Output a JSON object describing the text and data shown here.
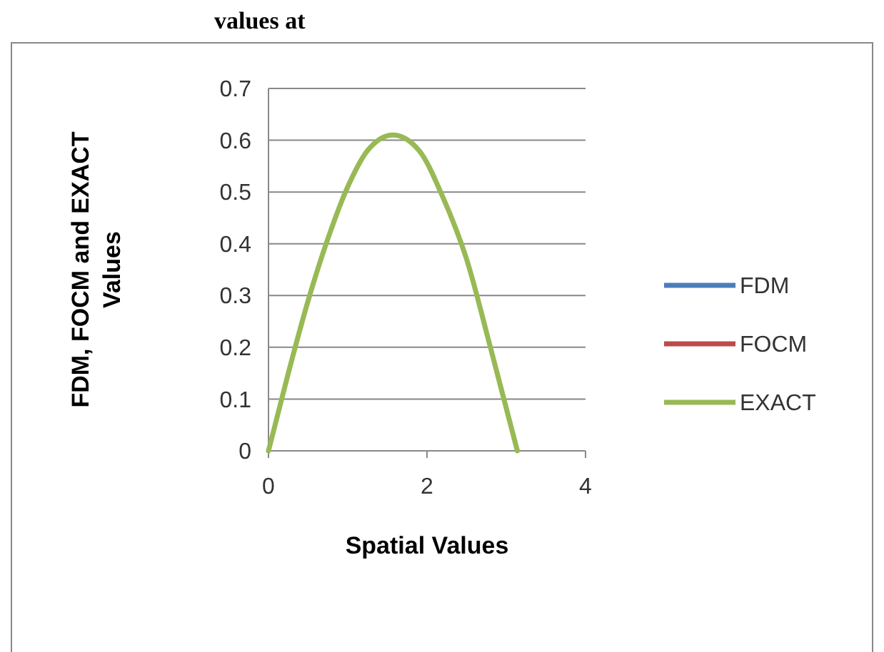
{
  "chart_data": {
    "type": "line",
    "title": "values at",
    "xlabel": "Spatial Values",
    "ylabel": "FDM, FOCM and EXACT Values",
    "x": [
      0,
      0.25,
      0.5,
      0.75,
      1,
      1.25,
      1.57,
      1.9,
      2.2,
      2.5,
      2.8,
      3.14
    ],
    "series": [
      {
        "name": "FDM",
        "color": "#4a7ebb",
        "values": [
          null,
          null,
          null,
          null,
          null,
          null,
          null,
          null,
          null,
          null,
          null,
          null
        ]
      },
      {
        "name": "FOCM",
        "color": "#be4b48",
        "values": [
          null,
          null,
          null,
          null,
          null,
          null,
          null,
          null,
          null,
          null,
          null,
          null
        ]
      },
      {
        "name": "EXACT",
        "color": "#98b954",
        "values": [
          0,
          0.15,
          0.29,
          0.41,
          0.51,
          0.58,
          0.61,
          0.58,
          0.49,
          0.37,
          0.2,
          0
        ]
      }
    ],
    "xlim": [
      0,
      4
    ],
    "xticks": [
      0,
      2,
      4
    ],
    "ylim": [
      0,
      0.7
    ],
    "yticks": [
      0,
      0.1,
      0.2,
      0.3,
      0.4,
      0.5,
      0.6,
      0.7
    ],
    "grid": "y",
    "legend": "right",
    "marker": "none",
    "line_style": "solid"
  }
}
